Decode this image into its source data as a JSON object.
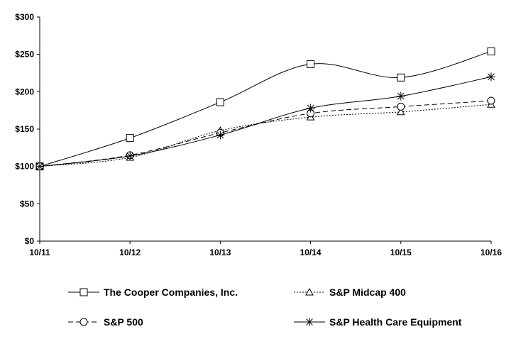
{
  "chart_data": {
    "type": "line",
    "title": "",
    "xlabel": "",
    "ylabel": "",
    "categories": [
      "10/11",
      "10/12",
      "10/13",
      "10/14",
      "10/15",
      "10/16"
    ],
    "y_tick_labels": [
      "$0",
      "$50",
      "$100",
      "$150",
      "$200",
      "$250",
      "$300"
    ],
    "y_ticks": [
      0,
      50,
      100,
      150,
      200,
      250,
      300
    ],
    "ylim": [
      0,
      300
    ],
    "grid": false,
    "legend_position": "bottom",
    "series": [
      {
        "name": "The Cooper Companies, Inc.",
        "values": [
          100,
          138,
          186,
          237,
          219,
          254
        ],
        "marker": "square",
        "dash": "solid",
        "color": "#000000"
      },
      {
        "name": "S&P Midcap 400",
        "values": [
          100,
          112,
          148,
          166,
          173,
          183
        ],
        "marker": "triangle",
        "dash": "dotted",
        "color": "#000000"
      },
      {
        "name": "S&P 500",
        "values": [
          100,
          115,
          145,
          171,
          180,
          188
        ],
        "marker": "circle",
        "dash": "dashed",
        "color": "#000000"
      },
      {
        "name": "S&P Health Care Equipment",
        "values": [
          100,
          114,
          142,
          178,
          194,
          220
        ],
        "marker": "asterisk",
        "dash": "solid",
        "color": "#000000"
      }
    ]
  }
}
